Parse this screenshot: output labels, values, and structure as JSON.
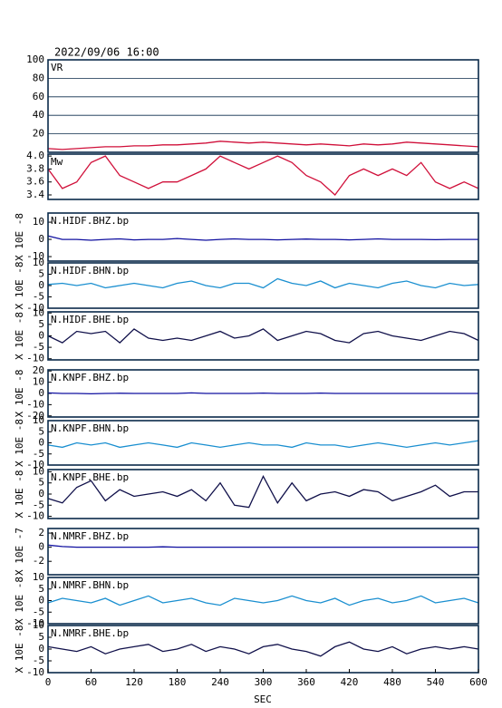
{
  "chart_data": {
    "type": "line",
    "title": "2022/09/06 16:00",
    "xlabel": "SEC",
    "xlim": [
      0,
      600
    ],
    "xticks": [
      0,
      60,
      120,
      180,
      240,
      300,
      360,
      420,
      480,
      540,
      600
    ],
    "x": [
      0,
      20,
      40,
      60,
      80,
      100,
      120,
      140,
      160,
      180,
      200,
      220,
      240,
      260,
      280,
      300,
      320,
      340,
      360,
      380,
      400,
      420,
      440,
      460,
      480,
      500,
      520,
      540,
      560,
      580,
      600
    ],
    "panels": [
      {
        "name": "VR",
        "color": "#d0103a",
        "ylim": [
          0,
          100
        ],
        "yticks": [
          20,
          40,
          60,
          80,
          100
        ],
        "grid": true,
        "values": [
          4,
          3,
          4,
          5,
          6,
          6,
          7,
          7,
          8,
          8,
          9,
          10,
          12,
          11,
          10,
          11,
          10,
          9,
          8,
          9,
          8,
          7,
          9,
          8,
          9,
          11,
          10,
          9,
          8,
          7,
          6
        ]
      },
      {
        "name": "Mw",
        "color": "#d0103a",
        "ylim": [
          3.33,
          4.03
        ],
        "yticks": [
          3.4,
          3.6,
          3.8,
          {
            "value": 4,
            "label": "4.0"
          }
        ],
        "grid": false,
        "values": [
          3.8,
          3.5,
          3.6,
          3.9,
          4.0,
          3.7,
          3.6,
          3.5,
          3.6,
          3.6,
          3.7,
          3.8,
          4.0,
          3.9,
          3.8,
          3.9,
          4.0,
          3.9,
          3.7,
          3.6,
          3.4,
          3.7,
          3.8,
          3.7,
          3.8,
          3.7,
          3.9,
          3.6,
          3.5,
          3.6,
          3.5
        ]
      },
      {
        "name": "N.HIDF.BHZ.bp",
        "ylabel": "X 10E -8",
        "color": "#1010a0",
        "ylim": [
          -12.6,
          15.3
        ],
        "yticks": [
          10,
          0,
          -10
        ],
        "grid": false,
        "values": [
          2,
          0,
          0,
          -0.5,
          0,
          0.3,
          -0.3,
          0,
          0,
          0.5,
          0,
          -0.5,
          0,
          0.3,
          0,
          0,
          -0.3,
          0,
          0.2,
          0,
          0,
          -0.3,
          0,
          0.3,
          0,
          0,
          0,
          -0.2,
          0,
          0,
          0
        ]
      },
      {
        "name": "N.HIDF.BHN.bp",
        "ylabel": "X 10E -8",
        "color": "#1a8fd0",
        "ylim": [
          -10,
          10
        ],
        "yticks": [
          10,
          5,
          0,
          -5,
          -10
        ],
        "grid": false,
        "values": [
          0.5,
          1,
          0,
          1,
          -1,
          0,
          1,
          0,
          -1,
          1,
          2,
          0,
          -1,
          1,
          1,
          -1,
          3,
          1,
          0,
          2,
          -1,
          1,
          0,
          -1,
          1,
          2,
          0,
          -1,
          1,
          0,
          0.5
        ]
      },
      {
        "name": "N.HIDF.BHE.bp",
        "ylabel": "X 10E -8",
        "color": "#10104a",
        "ylim": [
          -10.5,
          10.5
        ],
        "yticks": [
          10,
          5,
          0,
          -5,
          -10
        ],
        "grid": false,
        "values": [
          0,
          -3,
          2,
          1,
          2,
          -3,
          3,
          -1,
          -2,
          -1,
          -2,
          0,
          2,
          -1,
          0,
          3,
          -2,
          0,
          2,
          1,
          -2,
          -3,
          1,
          2,
          0,
          -1,
          -2,
          0,
          2,
          1,
          -2
        ]
      },
      {
        "name": "N.KNPF.BHZ.bp",
        "ylabel": "X 10E -8",
        "color": "#1010a0",
        "ylim": [
          -21,
          21
        ],
        "yticks": [
          20,
          10,
          0,
          -10,
          -20
        ],
        "grid": false,
        "values": [
          0.5,
          0,
          0,
          -0.3,
          0,
          0.2,
          0,
          0,
          0,
          0,
          0.5,
          0,
          0,
          0,
          0,
          0.3,
          0,
          0,
          0,
          0.3,
          0,
          0,
          0,
          0,
          0,
          0,
          0,
          0,
          0,
          0,
          0
        ]
      },
      {
        "name": "N.KNPF.BHN.bp",
        "ylabel": "X 10E -8",
        "color": "#1a8fd0",
        "ylim": [
          -10,
          10
        ],
        "yticks": [
          10,
          5,
          0,
          -5,
          -10
        ],
        "grid": false,
        "values": [
          -1,
          -2,
          0,
          -1,
          0,
          -2,
          -1,
          0,
          -1,
          -2,
          0,
          -1,
          -2,
          -1,
          0,
          -1,
          -1,
          -2,
          0,
          -1,
          -1,
          -2,
          -1,
          0,
          -1,
          -2,
          -1,
          0,
          -1,
          0,
          1
        ]
      },
      {
        "name": "N.KNPF.BHE.bp",
        "ylabel": "X 10E -8",
        "color": "#10104a",
        "ylim": [
          -11,
          11
        ],
        "yticks": [
          10,
          5,
          0,
          -5,
          -10
        ],
        "grid": false,
        "values": [
          -2,
          -4,
          3,
          6,
          -3,
          2,
          -1,
          0,
          1,
          -1,
          2,
          -3,
          5,
          -5,
          -6,
          8,
          -4,
          5,
          -3,
          0,
          1,
          -1,
          2,
          1,
          -3,
          -1,
          1,
          4,
          -1,
          1,
          1
        ]
      },
      {
        "name": "N.NMRF.BHZ.bp",
        "ylabel": "X 10E -7",
        "color": "#1010a0",
        "ylim": [
          -3.9,
          2.65
        ],
        "yticks": [
          2,
          0,
          -2
        ],
        "grid": false,
        "values": [
          0.3,
          0.1,
          0,
          0,
          0,
          0,
          0,
          0,
          0.05,
          0,
          0,
          0,
          0,
          0,
          0,
          0,
          0,
          0,
          0,
          0,
          0,
          0,
          0,
          0,
          0,
          0,
          0,
          0,
          0,
          0,
          0
        ]
      },
      {
        "name": "N.NMRF.BHN.bp",
        "ylabel": "X 10E -8",
        "color": "#1a8fd0",
        "ylim": [
          -10,
          10
        ],
        "yticks": [
          10,
          5,
          0,
          -5,
          -10
        ],
        "grid": false,
        "values": [
          -1,
          1,
          0,
          -1,
          1,
          -2,
          0,
          2,
          -1,
          0,
          1,
          -1,
          -2,
          1,
          0,
          -1,
          0,
          2,
          0,
          -1,
          1,
          -2,
          0,
          1,
          -1,
          0,
          2,
          -1,
          0,
          1,
          -1
        ]
      },
      {
        "name": "N.NMRF.BHE.bp",
        "ylabel": "X 10E -8",
        "color": "#10104a",
        "ylim": [
          -10,
          10
        ],
        "yticks": [
          10,
          5,
          0,
          -5,
          -10
        ],
        "grid": false,
        "values": [
          1,
          0,
          -1,
          1,
          -2,
          0,
          1,
          2,
          -1,
          0,
          2,
          -1,
          1,
          0,
          -2,
          1,
          2,
          0,
          -1,
          -3,
          1,
          3,
          0,
          -1,
          1,
          -2,
          0,
          1,
          0,
          1,
          0
        ]
      }
    ]
  }
}
